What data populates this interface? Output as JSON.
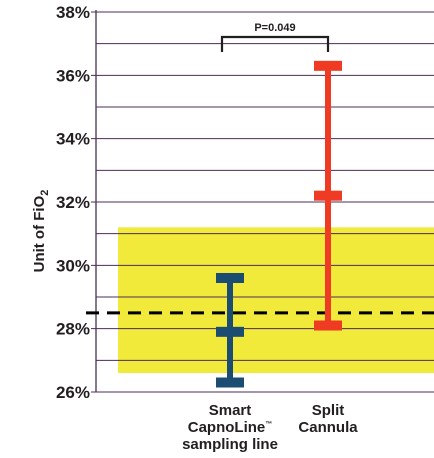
{
  "chart_data": {
    "type": "errorbar",
    "ylabel": "Unit of FiO",
    "ylabel_sub": "2",
    "ylim": [
      26,
      38
    ],
    "y_ticks": [
      26,
      28,
      30,
      32,
      34,
      36,
      38
    ],
    "y_tick_suffix": "%",
    "grid": "horizontal",
    "reference_band": [
      26.6,
      31.2
    ],
    "reference_line": 28.5,
    "series": [
      {
        "label_lines": [
          "Smart",
          "CapnoLine™",
          "sampling line"
        ],
        "low": 26.3,
        "mid": 27.9,
        "high": 29.6
      },
      {
        "label_lines": [
          "Split",
          "Cannula"
        ],
        "low": 28.1,
        "mid": 32.2,
        "high": 36.3
      }
    ],
    "annotation": {
      "text": "P=0.049"
    }
  },
  "colors": {
    "band": "#f2ea3b",
    "grid": "#4b2d56",
    "series": [
      "#1b4d72",
      "#ef3b24"
    ],
    "text": "#231f20"
  }
}
